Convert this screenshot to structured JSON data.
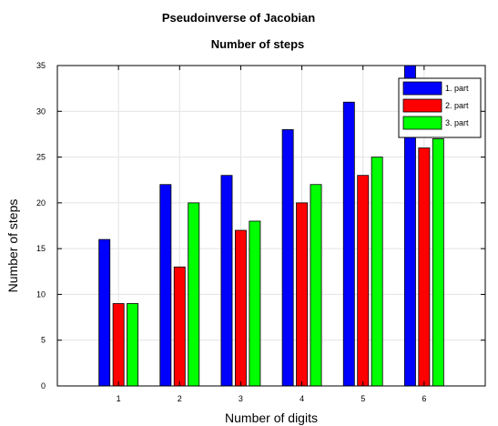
{
  "chart_data": {
    "type": "bar",
    "title": "Pseudoinverse of Jacobian",
    "subtitle": "Number of steps",
    "xlabel": "Number of digits",
    "ylabel": "Number of steps",
    "categories": [
      "1",
      "2",
      "3",
      "4",
      "5",
      "6"
    ],
    "series": [
      {
        "name": "1. part",
        "color": "#0000ff",
        "values": [
          16,
          22,
          23,
          28,
          31,
          35
        ]
      },
      {
        "name": "2. part",
        "color": "#ff0000",
        "values": [
          9,
          13,
          17,
          20,
          23,
          26
        ]
      },
      {
        "name": "3. part",
        "color": "#00ff00",
        "values": [
          9,
          20,
          18,
          22,
          25,
          27
        ]
      }
    ],
    "ylim": [
      0,
      35
    ],
    "xlim": [
      0,
      7
    ],
    "yticks": [
      0,
      5,
      10,
      15,
      20,
      25,
      30,
      35
    ],
    "grid": true,
    "legend_position": "top-right"
  }
}
